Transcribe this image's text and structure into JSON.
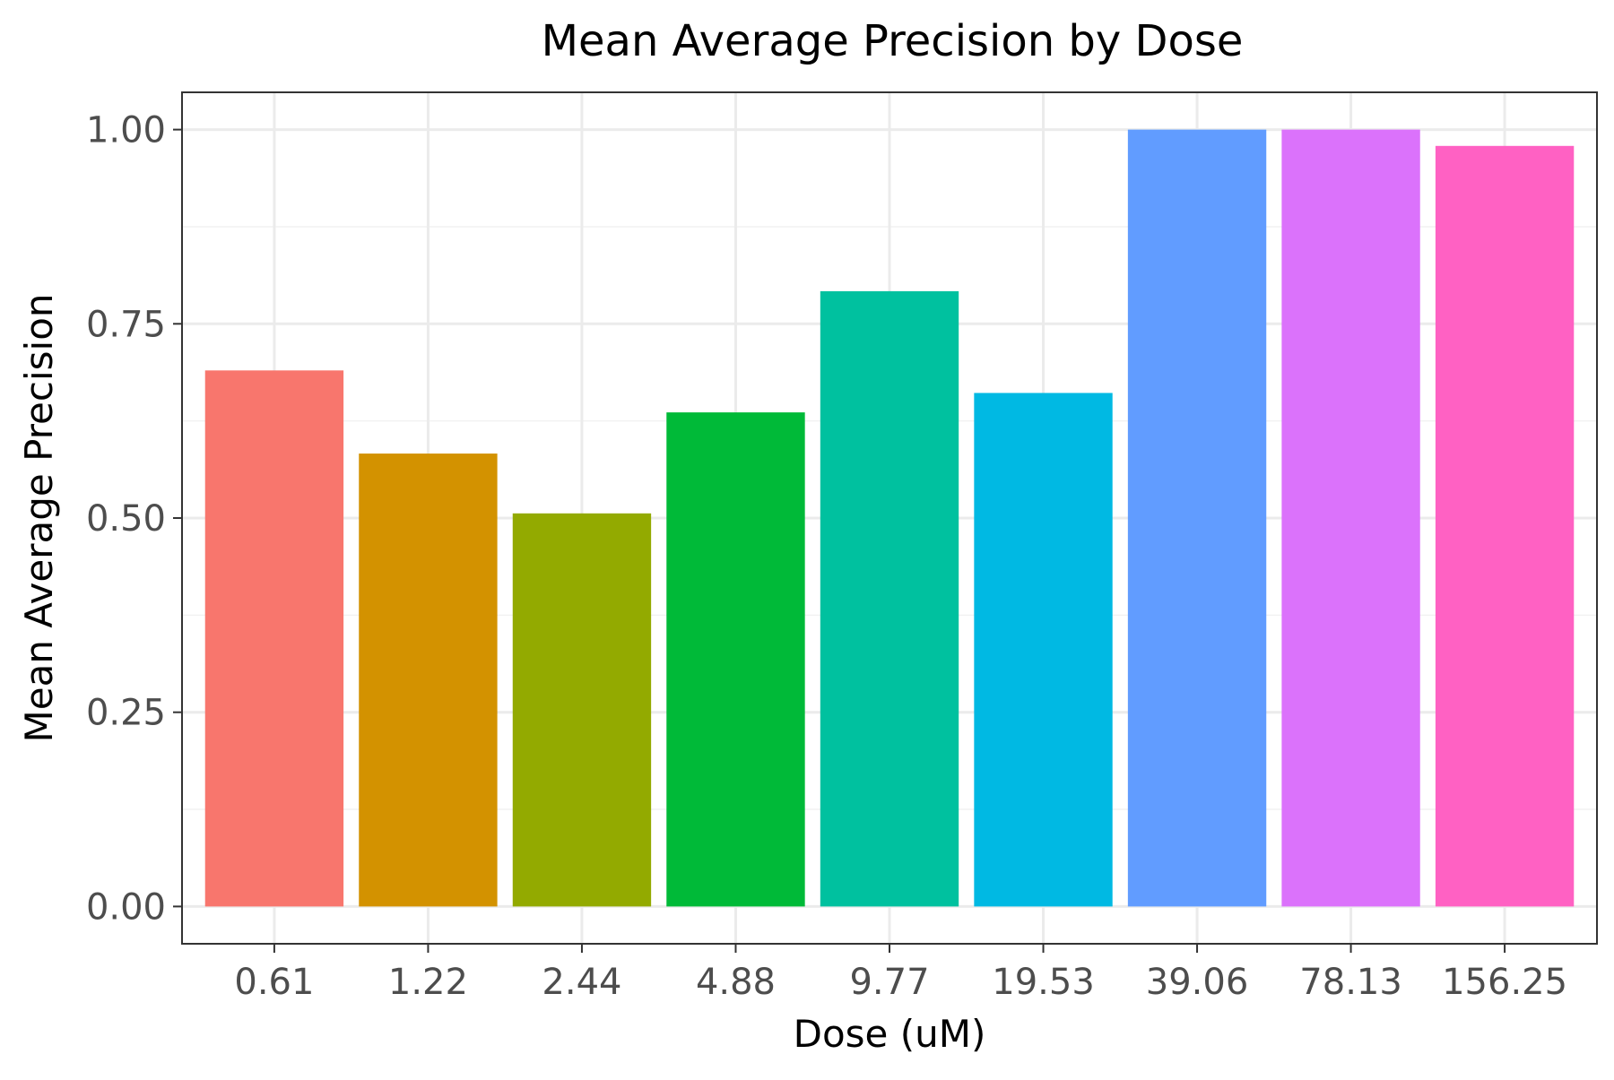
{
  "chart_data": {
    "type": "bar",
    "title": "Mean Average Precision by Dose",
    "xlabel": "Dose (uM)",
    "ylabel": "Mean Average Precision",
    "categories": [
      "0.61",
      "1.22",
      "2.44",
      "4.88",
      "9.77",
      "19.53",
      "39.06",
      "78.13",
      "156.25"
    ],
    "values": [
      0.69,
      0.583,
      0.506,
      0.636,
      0.792,
      0.661,
      1.0,
      1.0,
      0.979
    ],
    "colors": [
      "#F8766D",
      "#D39200",
      "#93AA00",
      "#00BA38",
      "#00C19F",
      "#00B9E3",
      "#619CFF",
      "#DB72FB",
      "#FF61C3"
    ],
    "ylim": [
      -0.048,
      1.048
    ],
    "yticks": [
      0.0,
      0.25,
      0.5,
      0.75,
      1.0
    ],
    "ytick_labels": [
      "0.00",
      "0.25",
      "0.50",
      "0.75",
      "1.00"
    ],
    "grid": true,
    "legend": "none"
  }
}
